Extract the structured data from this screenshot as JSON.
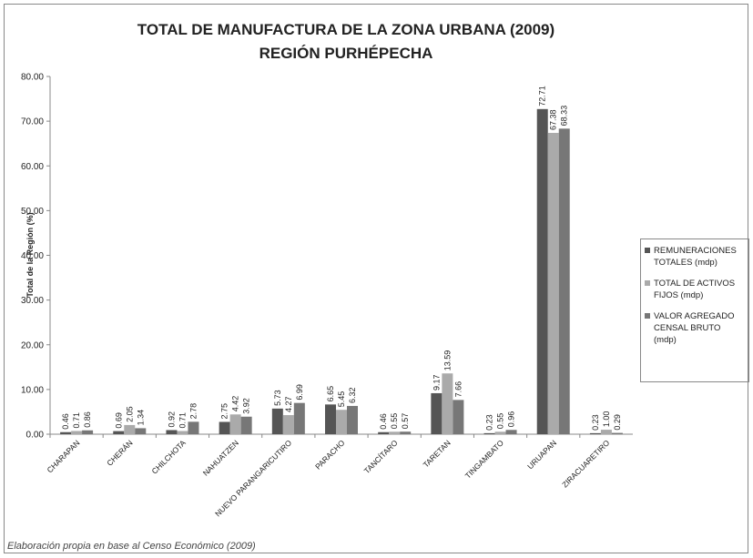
{
  "chart_data": {
    "type": "bar",
    "title": "TOTAL DE MANUFACTURA DE LA ZONA URBANA (2009) REGIÓN PURHÉPECHA",
    "y_label": "Total de la Región (%)",
    "footnote": "Elaboración propia  en base  al Censo Económico (2009)",
    "categories": [
      "CHARAPAN",
      "CHERÁN",
      "CHILCHOTA",
      "NAHUATZEN",
      "NUEVO PARANGARICUTIRO",
      "PARACHO",
      "TANCÍTARO",
      "TARETAN",
      "TINGAMBATO",
      "URUAPAN",
      "ZIRACUARETIRO"
    ],
    "series": [
      {
        "name": "REMUNERACIONES TOTALES (mdp)",
        "color": "#555555",
        "values": [
          0.46,
          0.69,
          0.92,
          2.75,
          5.73,
          6.65,
          0.46,
          9.17,
          0.23,
          72.71,
          0.23
        ],
        "value_labels": [
          "0.46",
          "0.69",
          "0.92",
          "2.75",
          "5.73",
          "6.65",
          "0.46",
          "9.17",
          "0.23",
          "72.71",
          "0.23"
        ]
      },
      {
        "name": "TOTAL DE ACTIVOS FIJOS (mdp)",
        "color": "#aaaaaa",
        "values": [
          0.71,
          2.05,
          0.71,
          4.42,
          4.27,
          5.45,
          0.55,
          13.59,
          0.55,
          67.38,
          1.0
        ],
        "value_labels": [
          "0.71",
          "2.05",
          "0.71",
          "4.42",
          "4.27",
          "5.45",
          "0.55",
          "13.59",
          "0.55",
          "67.38",
          "1.00"
        ]
      },
      {
        "name": "VALOR AGREGADO CENSAL BRUTO (mdp)",
        "color": "#777777",
        "values": [
          0.86,
          1.34,
          2.78,
          3.92,
          6.99,
          6.32,
          0.57,
          7.66,
          0.96,
          68.33,
          0.29
        ],
        "value_labels": [
          "0.86",
          "1.34",
          "2.78",
          "3.92",
          "6.99",
          "6.32",
          "0.57",
          "7.66",
          "0.96",
          "68.33",
          "0.29"
        ]
      }
    ],
    "ylim": [
      0,
      80
    ],
    "yticks": [
      {
        "value": 0,
        "label": "0.00"
      },
      {
        "value": 10,
        "label": "10.00"
      },
      {
        "value": 20,
        "label": "20.00"
      },
      {
        "value": 30,
        "label": "30.00"
      },
      {
        "value": 40,
        "label": "40.00"
      },
      {
        "value": 50,
        "label": "50.00"
      },
      {
        "value": 60,
        "label": "60.00"
      },
      {
        "value": 70,
        "label": "70.00"
      },
      {
        "value": 80,
        "label": "80.00"
      }
    ]
  }
}
